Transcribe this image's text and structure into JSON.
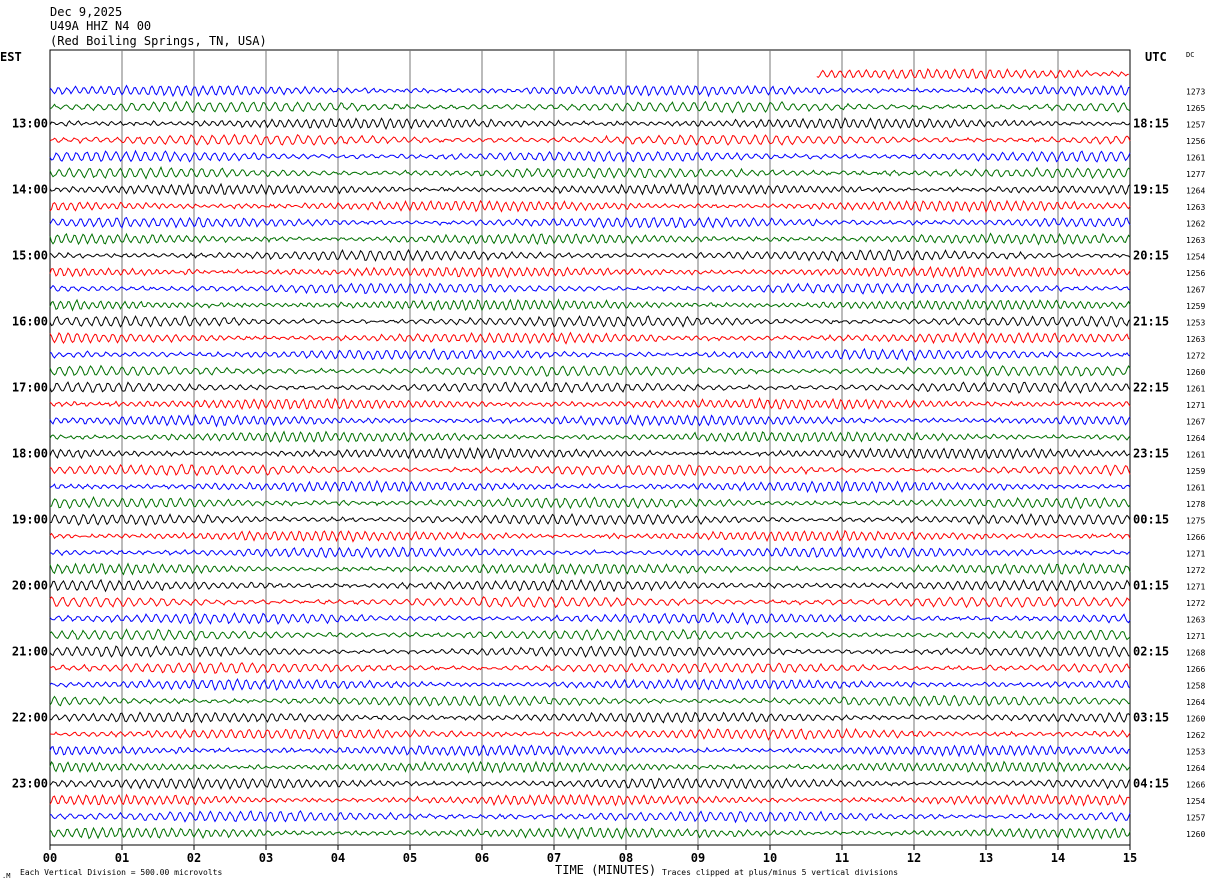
{
  "header": {
    "date": "Dec 9,2025",
    "station": "U49A HHZ N4 00",
    "location": "(Red Boiling Springs, TN, USA)"
  },
  "labels": {
    "left_tz": "EST",
    "right_tz": "UTC",
    "dc": "DC",
    "xlabel": "TIME (MINUTES)",
    "scale_note": "Each Vertical Division =  500.00 microvolts",
    "clip_note": "Traces clipped at plus/minus 5 vertical divisions"
  },
  "chart_data": {
    "type": "line",
    "title": "U49A HHZ N4 00",
    "xlabel": "TIME (MINUTES)",
    "xlim": [
      0,
      15
    ],
    "x_ticks": [
      "00",
      "01",
      "02",
      "03",
      "04",
      "05",
      "06",
      "07",
      "08",
      "09",
      "10",
      "11",
      "12",
      "13",
      "14",
      "15"
    ],
    "trace_colors": [
      "#000000",
      "#ff0000",
      "#0000ff",
      "#007000"
    ],
    "first_trace_color_index": 1,
    "first_trace_start_minute": 10.65,
    "left_hour_labels": [
      "13:00",
      "14:00",
      "15:00",
      "16:00",
      "17:00",
      "18:00",
      "19:00",
      "20:00",
      "21:00",
      "22:00",
      "23:00"
    ],
    "right_hour_labels": [
      "18:15",
      "19:15",
      "20:15",
      "21:15",
      "22:15",
      "23:15",
      "00:15",
      "01:15",
      "02:15",
      "03:15",
      "04:15"
    ],
    "dc_offsets": [
      null,
      1273,
      1265,
      1257,
      1256,
      1261,
      1277,
      1264,
      1263,
      1262,
      1263,
      1254,
      1256,
      1267,
      1259,
      1253,
      1263,
      1272,
      1260,
      1261,
      1271,
      1267,
      1264,
      1261,
      1259,
      1261,
      1278,
      1275,
      1266,
      1271,
      1272,
      1271,
      1272,
      1263,
      1271,
      1268,
      1266,
      1258,
      1264,
      1260,
      1262,
      1253,
      1264,
      1266,
      1254,
      1257,
      1260
    ]
  }
}
